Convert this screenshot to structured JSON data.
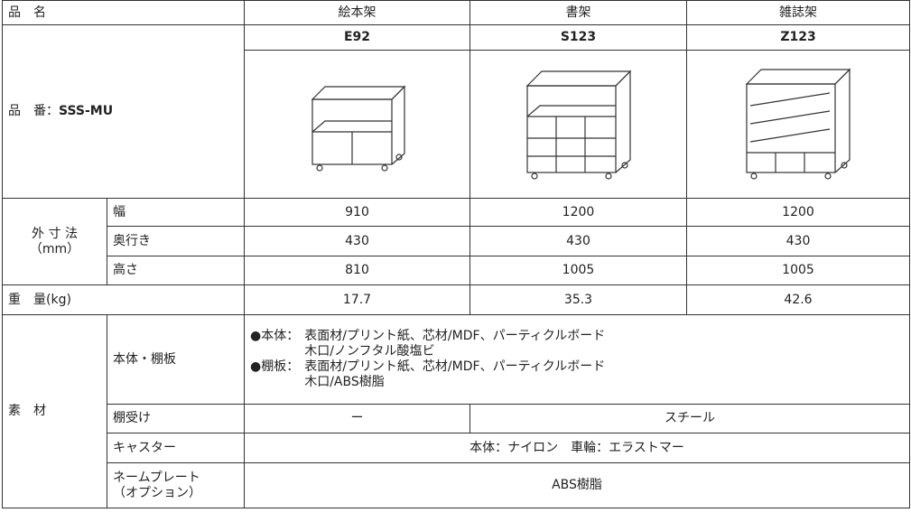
{
  "table": {
    "header": [
      "品　名",
      "絵本架",
      "書架",
      "雑誌架"
    ],
    "code_label": "品　番：",
    "code_series": "SSS-MU",
    "codes": [
      "E92",
      "S123",
      "Z123"
    ],
    "dimensions": {
      "label": "外 寸 法",
      "unit": "（mm）",
      "rows": [
        {
          "name": "幅",
          "values": [
            "910",
            "1200",
            "1200"
          ]
        },
        {
          "name": "奥行き",
          "values": [
            "430",
            "430",
            "430"
          ]
        },
        {
          "name": "高さ",
          "values": [
            "810",
            "1005",
            "1005"
          ]
        }
      ]
    },
    "weight": {
      "label": "重　量(kg)",
      "values": [
        "17.7",
        "35.3",
        "42.6"
      ]
    },
    "materials": {
      "label": "素　材",
      "body": {
        "name": "本体・棚板",
        "items": [
          {
            "head": "●本体：",
            "lines": [
              "表面材/プリント紙、芯材/MDF、パーティクルボード",
              "木口/ノンフタル酸塩ビ"
            ]
          },
          {
            "head": "●棚板：",
            "lines": [
              "表面材/プリント紙、芯材/MDF、パーティクルボード",
              "木口/ABS樹脂"
            ]
          }
        ]
      },
      "bracket": {
        "name": "棚受け",
        "values": [
          "ー",
          "スチール"
        ]
      },
      "caster": {
        "name": "キャスター",
        "value": "本体：ナイロン　車輪：エラストマー"
      },
      "nameplate": {
        "name": [
          "ネームプレート",
          "（オプション）"
        ],
        "value": "ABS樹脂"
      }
    }
  }
}
